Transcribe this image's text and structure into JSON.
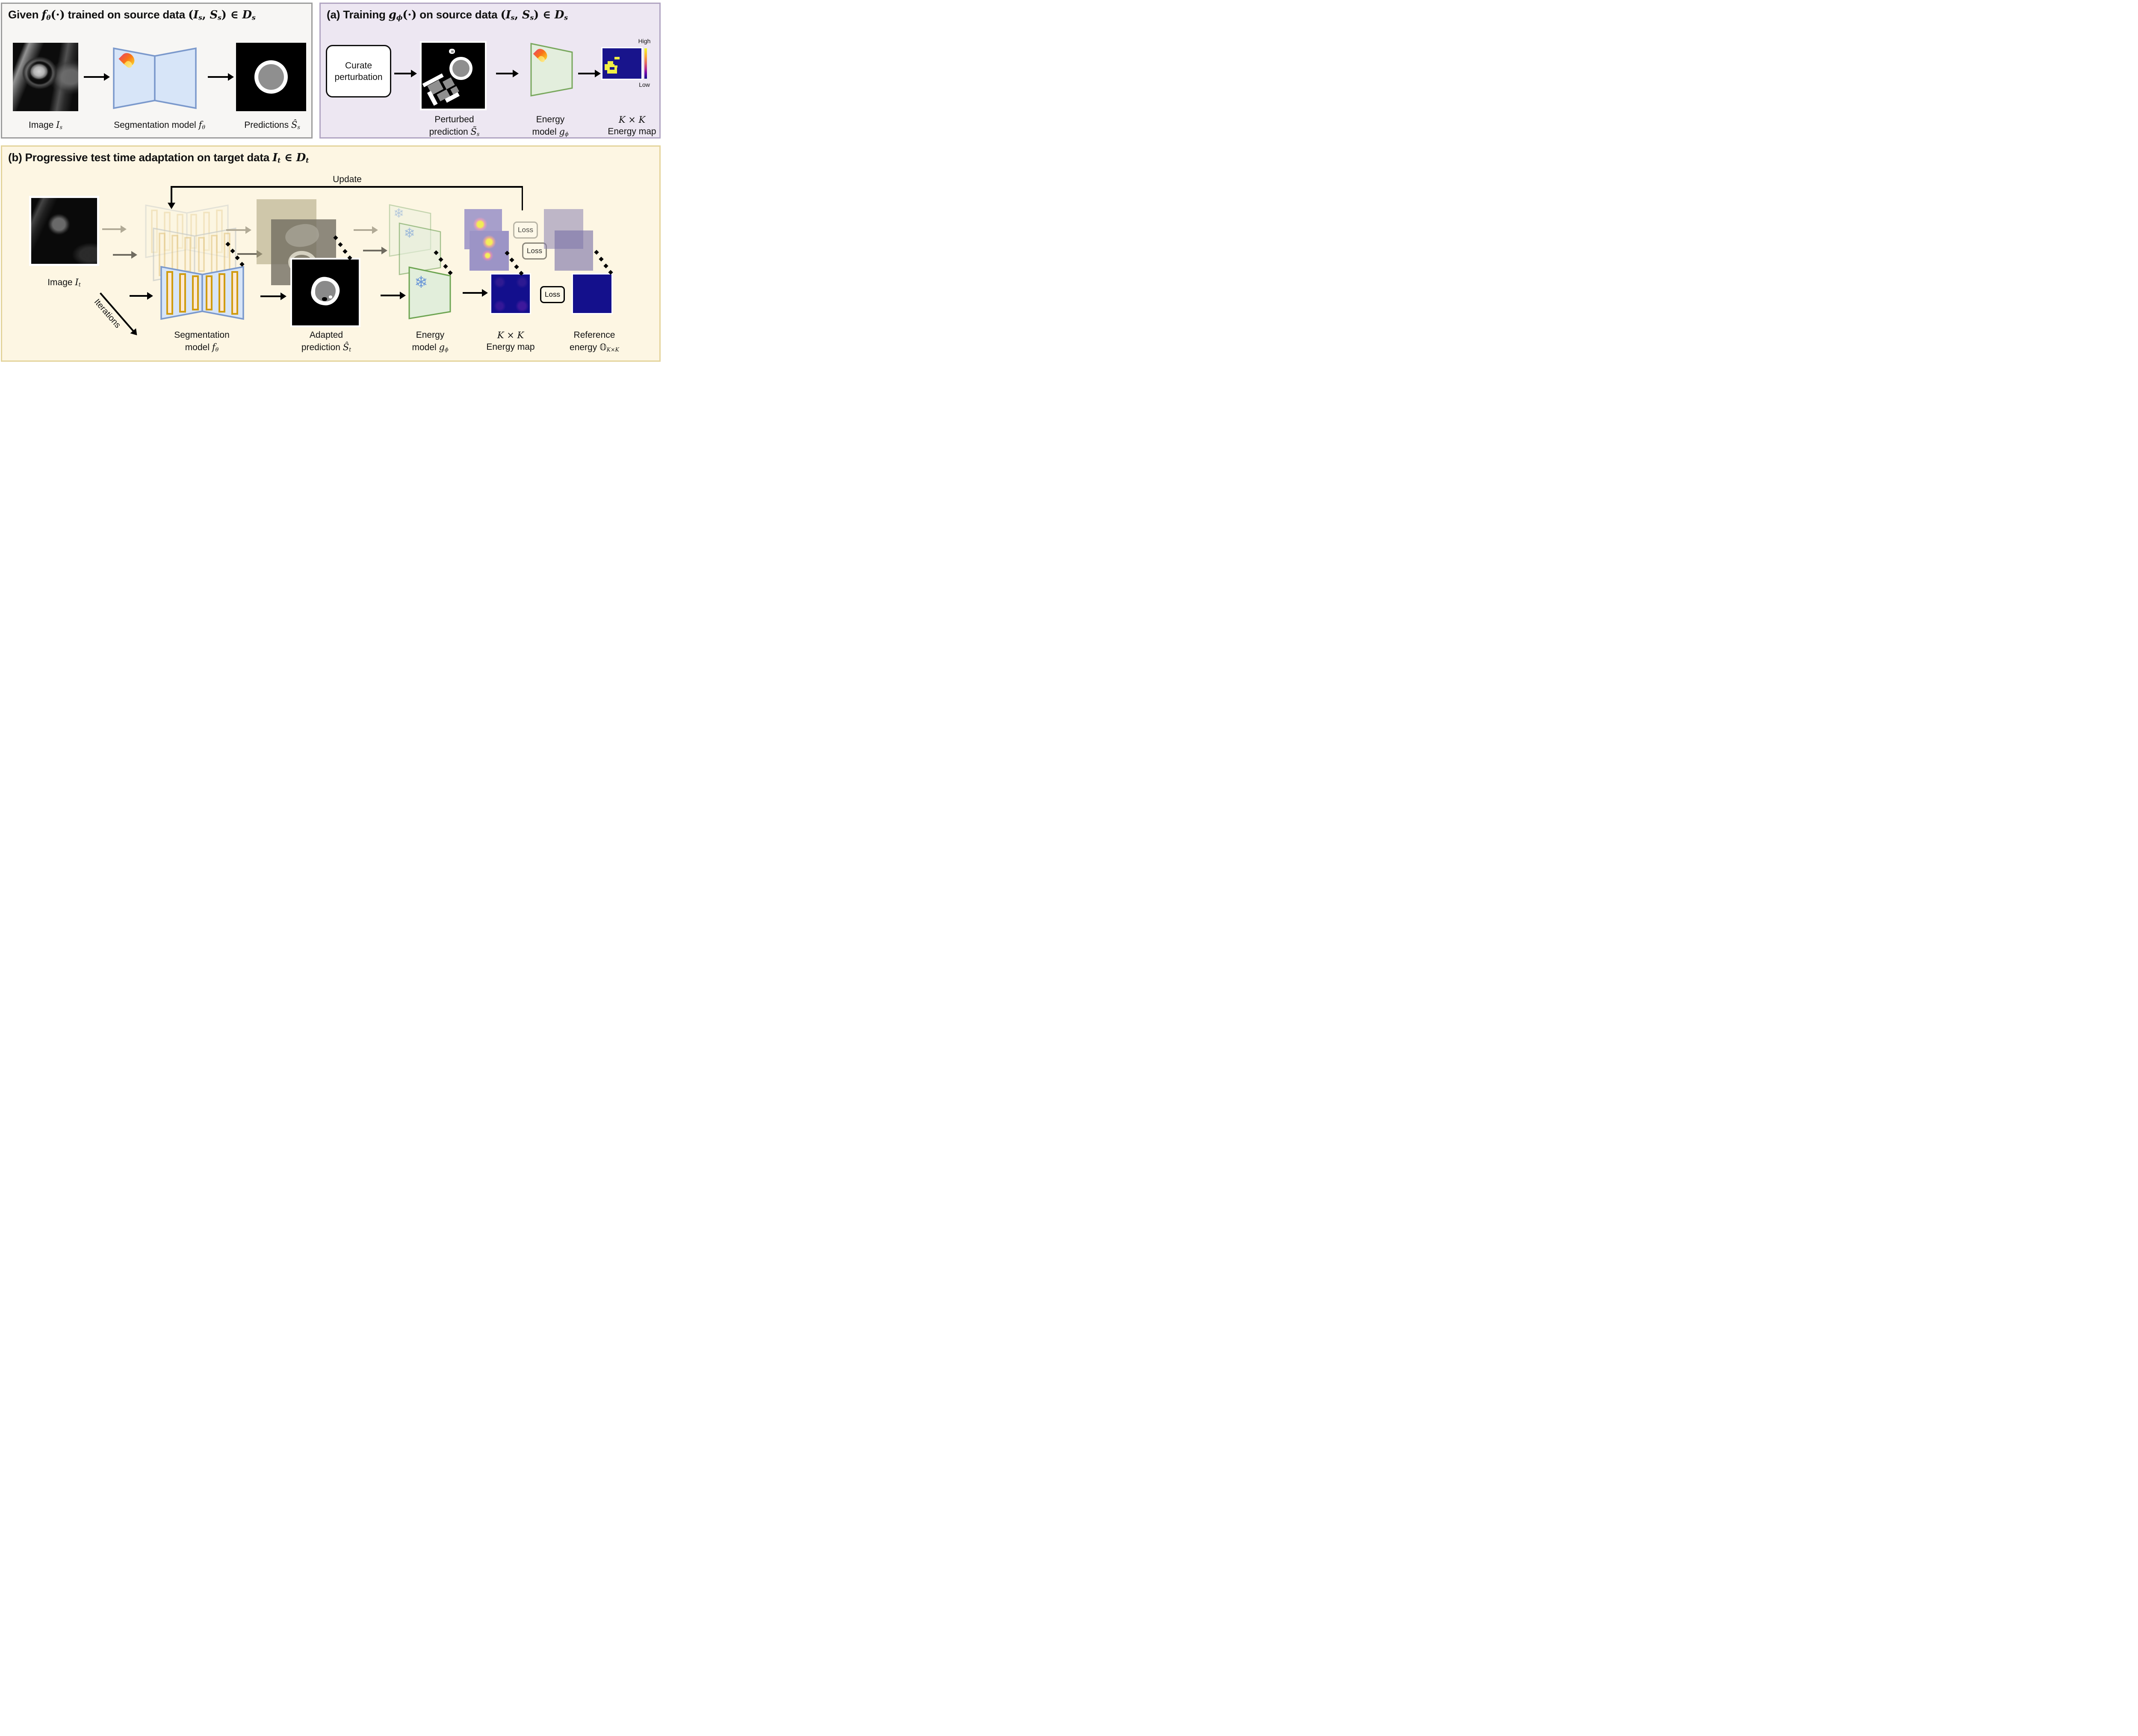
{
  "given": {
    "title": [
      {
        "t": "Given ",
        "k": "t"
      },
      {
        "t": "f",
        "k": "m"
      },
      {
        "t": "θ",
        "k": "s"
      },
      {
        "t": "(·)",
        "k": "o"
      },
      {
        "t": " trained on source data ",
        "k": "t"
      },
      {
        "t": "(",
        "k": "o"
      },
      {
        "t": "I",
        "k": "m"
      },
      {
        "t": "s",
        "k": "s"
      },
      {
        "t": ", ",
        "k": "o"
      },
      {
        "t": "S",
        "k": "m"
      },
      {
        "t": "s",
        "k": "s"
      },
      {
        "t": ")",
        "k": "o"
      },
      {
        "t": " ∈ ",
        "k": "o"
      },
      {
        "t": "D",
        "k": "m"
      },
      {
        "t": "s",
        "k": "s"
      }
    ],
    "image_label": [
      {
        "t": "Image ",
        "k": "t"
      },
      {
        "t": "I",
        "k": "m"
      },
      {
        "t": "s",
        "k": "s"
      }
    ],
    "model_label": [
      {
        "t": "Segmentation model ",
        "k": "t"
      },
      {
        "t": "f",
        "k": "m"
      },
      {
        "t": "θ",
        "k": "s"
      }
    ],
    "pred_label": [
      {
        "t": "Predictions ",
        "k": "t"
      },
      {
        "t": "Ŝ",
        "k": "m"
      },
      {
        "t": "s",
        "k": "s"
      }
    ]
  },
  "panel_a": {
    "title": [
      {
        "t": "(a) Training ",
        "k": "t"
      },
      {
        "t": "g",
        "k": "m"
      },
      {
        "t": "ϕ",
        "k": "s"
      },
      {
        "t": "(·)",
        "k": "o"
      },
      {
        "t": " on source data ",
        "k": "t"
      },
      {
        "t": "(",
        "k": "o"
      },
      {
        "t": "I",
        "k": "m"
      },
      {
        "t": "s",
        "k": "s"
      },
      {
        "t": ", ",
        "k": "o"
      },
      {
        "t": "S",
        "k": "m"
      },
      {
        "t": "s",
        "k": "s"
      },
      {
        "t": ")",
        "k": "o"
      },
      {
        "t": " ∈ ",
        "k": "o"
      },
      {
        "t": "D",
        "k": "m"
      },
      {
        "t": "s",
        "k": "s"
      }
    ],
    "curate_line1": "Curate",
    "curate_line2": "perturbation",
    "perturbed_l1": [
      {
        "t": "Perturbed",
        "k": "t"
      }
    ],
    "perturbed_l2": [
      {
        "t": "prediction ",
        "k": "t"
      },
      {
        "t": "S̃",
        "k": "m"
      },
      {
        "t": "s",
        "k": "s"
      }
    ],
    "energy_l1": [
      {
        "t": "Energy",
        "k": "t"
      }
    ],
    "energy_l2": [
      {
        "t": "model ",
        "k": "t"
      },
      {
        "t": "g",
        "k": "m"
      },
      {
        "t": "ϕ",
        "k": "s"
      }
    ],
    "map_l1": [
      {
        "t": "K",
        "k": "m"
      },
      {
        "t": " × ",
        "k": "o"
      },
      {
        "t": "K",
        "k": "m"
      }
    ],
    "map_l2": [
      {
        "t": "Energy map",
        "k": "t"
      }
    ],
    "high": "High",
    "low": "Low"
  },
  "panel_b": {
    "title": [
      {
        "t": "(b) Progressive test time adaptation on target data ",
        "k": "t"
      },
      {
        "t": "I",
        "k": "m"
      },
      {
        "t": "t",
        "k": "s"
      },
      {
        "t": " ∈ ",
        "k": "o"
      },
      {
        "t": "D",
        "k": "m"
      },
      {
        "t": "t",
        "k": "s"
      }
    ],
    "update_label": "Update",
    "image_label": [
      {
        "t": "Image ",
        "k": "t"
      },
      {
        "t": "I",
        "k": "m"
      },
      {
        "t": "t",
        "k": "s"
      }
    ],
    "iterations_label": "Iterations",
    "model_l1": [
      {
        "t": "Segmentation",
        "k": "t"
      }
    ],
    "model_l2": [
      {
        "t": "model ",
        "k": "t"
      },
      {
        "t": "f",
        "k": "m"
      },
      {
        "t": "θ",
        "k": "s"
      }
    ],
    "adapted_l1": [
      {
        "t": "Adapted",
        "k": "t"
      }
    ],
    "adapted_l2": [
      {
        "t": "prediction ",
        "k": "t"
      },
      {
        "t": "Ŝ",
        "k": "m"
      },
      {
        "t": "t",
        "k": "s"
      }
    ],
    "energy_l1": [
      {
        "t": "Energy",
        "k": "t"
      }
    ],
    "energy_l2": [
      {
        "t": "model ",
        "k": "t"
      },
      {
        "t": "g",
        "k": "m"
      },
      {
        "t": "ϕ",
        "k": "s"
      }
    ],
    "map_l1": [
      {
        "t": "K",
        "k": "m"
      },
      {
        "t": " × ",
        "k": "o"
      },
      {
        "t": "K",
        "k": "m"
      }
    ],
    "map_l2": [
      {
        "t": "Energy map",
        "k": "t"
      }
    ],
    "ref_l1": [
      {
        "t": "Reference",
        "k": "t"
      }
    ],
    "ref_l2": [
      {
        "t": "energy ",
        "k": "t"
      },
      {
        "t": "𝕆",
        "k": "bb"
      },
      {
        "t": "K×K",
        "k": "s"
      }
    ],
    "loss_labels": [
      "Loss",
      "Loss",
      "Loss"
    ]
  },
  "colors": {
    "panel_given_bg": "#f7f6f4",
    "panel_given_border": "#9d9d9d",
    "panel_a_bg": "#ede7f2",
    "panel_a_border": "#b1a5c2",
    "panel_b_bg": "#fdf6e3",
    "panel_b_border": "#e4d49c",
    "model_fill": "#d7e5f8",
    "model_border": "#7b99cc",
    "conv_bar_border": "#d09c10",
    "conv_bar_fill": "#fde9d3",
    "energy_sheet_fill": "#e2eedb",
    "energy_sheet_border": "#6da552",
    "snowflake": "#6f9ad8",
    "energy_map_navy": "#18148c",
    "energy_map_yellow": "#f0ef45",
    "faded_map_lavender": "#a39cc9",
    "mask_gray": "#8f8f8f"
  }
}
